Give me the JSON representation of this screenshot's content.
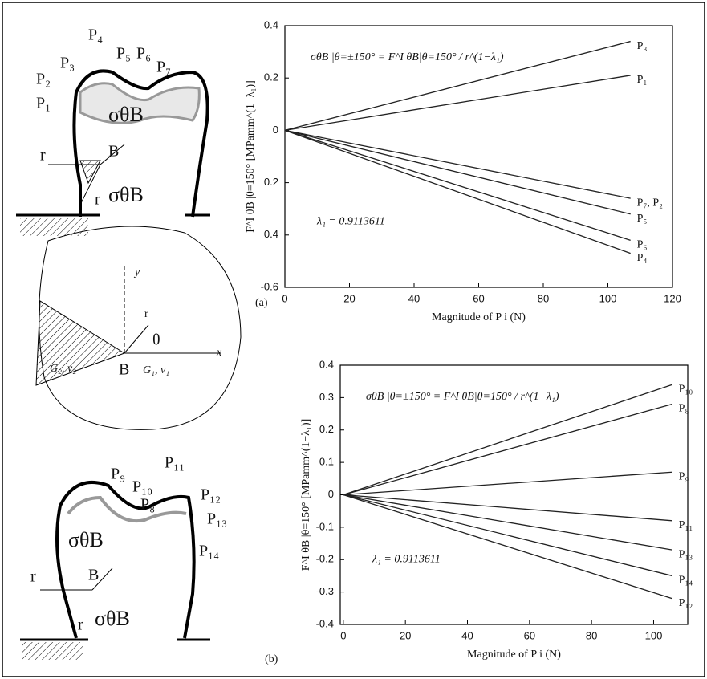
{
  "diagrams": {
    "top": [
      "P₂",
      "P₁",
      "P₃",
      "P₄",
      "P₅",
      "P₆",
      "P₇",
      "σθB",
      "B",
      "r",
      "r",
      "σθB"
    ],
    "middle": [
      "y",
      "x",
      "r",
      "θ",
      "B",
      "G₂, ν₂",
      "G₁, ν₁"
    ],
    "bottom": [
      "P₉",
      "P₁₀",
      "P₈",
      "P₁₁",
      "P₁₂",
      "P₁₃",
      "P₁₄",
      "σθB",
      "B",
      "r",
      "r",
      "σθB"
    ]
  },
  "chart_data": [
    {
      "type": "line",
      "panel": "(a)",
      "x_label": "Magnitude of P i (N)",
      "y_label": "F^I θB |θ=150° [MPamm^(1−λ₁)]",
      "annotation": "σθB |θ=±150° = F^I θB|θ=150° / r^(1−λ₁)",
      "lambda_note": "λ₁ = 0.9113611",
      "x": [
        0,
        107
      ],
      "xlim": [
        0,
        120
      ],
      "xticks": [
        0,
        20,
        40,
        60,
        80,
        100,
        120
      ],
      "ylim": [
        -0.6,
        0.4
      ],
      "yticks": [
        -0.6,
        {
          "value": -0.4,
          "label": "0.4"
        },
        {
          "value": -0.2,
          "label": "0.2"
        },
        0,
        0.2,
        0.4
      ],
      "series": [
        {
          "name": "P₃",
          "color": "#222",
          "values": [
            0,
            0.34
          ]
        },
        {
          "name": "P₁",
          "color": "#222",
          "values": [
            0,
            0.21
          ]
        },
        {
          "name": "P₇, P₂",
          "color": "#222",
          "values": [
            0,
            -0.26
          ]
        },
        {
          "name": "P₅",
          "color": "#222",
          "values": [
            0,
            -0.32
          ]
        },
        {
          "name": "P₆",
          "color": "#222",
          "values": [
            0,
            -0.42
          ]
        },
        {
          "name": "P₄",
          "color": "#222",
          "values": [
            0,
            -0.47
          ]
        }
      ]
    },
    {
      "type": "line",
      "panel": "(b)",
      "x_label": "Magnitude of P i (N)",
      "y_label": "F^I θB |θ=150° [MPamm^(1−λ₁)]",
      "annotation": "σθB |θ=±150° = F^I θB|θ=150° / r^(1−λ₁)",
      "lambda_note": "λ₁ = 0.9113611",
      "x": [
        0,
        106
      ],
      "xlim": [
        -1,
        111
      ],
      "xticks": [
        0,
        20,
        40,
        60,
        80,
        100
      ],
      "ylim": [
        -0.4,
        0.4
      ],
      "yticks": [
        -0.4,
        -0.3,
        -0.2,
        -0.1,
        0,
        0.1,
        0.2,
        0.3,
        0.4
      ],
      "series": [
        {
          "name": "P₁₀",
          "color": "#222",
          "values": [
            0,
            0.34
          ]
        },
        {
          "name": "P₈",
          "color": "#222",
          "values": [
            0,
            0.28
          ]
        },
        {
          "name": "P₉",
          "color": "#222",
          "values": [
            0,
            0.07
          ]
        },
        {
          "name": "P₁₁",
          "color": "#222",
          "values": [
            0,
            -0.08
          ]
        },
        {
          "name": "P₁₃",
          "color": "#222",
          "values": [
            0,
            -0.17
          ]
        },
        {
          "name": "P₁₄",
          "color": "#222",
          "values": [
            0,
            -0.25
          ]
        },
        {
          "name": "P₁₂",
          "color": "#222",
          "values": [
            0,
            -0.32
          ]
        }
      ]
    }
  ]
}
